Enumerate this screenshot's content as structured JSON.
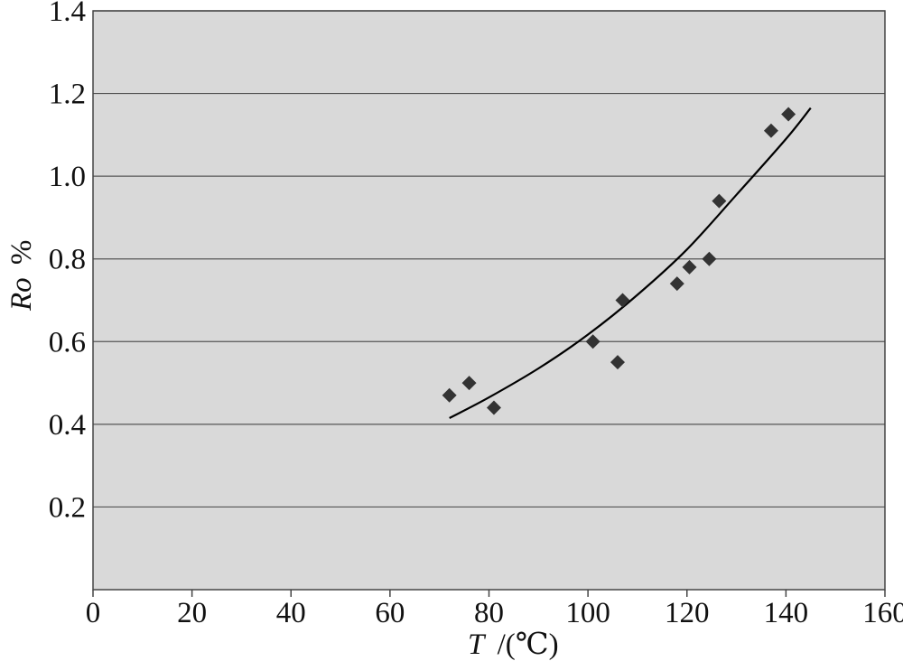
{
  "chart_data": {
    "type": "scatter",
    "x_ticks": [
      "0",
      "20",
      "40",
      "60",
      "80",
      "100",
      "120",
      "140",
      "160"
    ],
    "y_ticks": [
      "0.2",
      "0.4",
      "0.6",
      "0.8",
      "1.0",
      "1.2",
      "1.4"
    ],
    "xlabel_main": "T",
    "xlabel_unit": "/(℃)",
    "ylabel_main": "Ro",
    "ylabel_unit": "%",
    "xlim": [
      0,
      160
    ],
    "ylim": [
      0,
      1.4
    ],
    "grid": "horizontal",
    "background_color": "#d9d9d9",
    "marker": "diamond",
    "marker_color": "#333333",
    "points": [
      {
        "x": 72.0,
        "y": 0.47
      },
      {
        "x": 76.0,
        "y": 0.5
      },
      {
        "x": 81.0,
        "y": 0.44
      },
      {
        "x": 101.0,
        "y": 0.6
      },
      {
        "x": 106.0,
        "y": 0.55
      },
      {
        "x": 107.0,
        "y": 0.7
      },
      {
        "x": 118.0,
        "y": 0.74
      },
      {
        "x": 120.5,
        "y": 0.78
      },
      {
        "x": 124.5,
        "y": 0.8
      },
      {
        "x": 126.5,
        "y": 0.94
      },
      {
        "x": 137.0,
        "y": 1.11
      },
      {
        "x": 140.5,
        "y": 1.15
      }
    ],
    "trend_line": {
      "type": "exponential",
      "points": [
        {
          "x": 72,
          "y": 0.415
        },
        {
          "x": 80,
          "y": 0.465
        },
        {
          "x": 90,
          "y": 0.535
        },
        {
          "x": 100,
          "y": 0.617
        },
        {
          "x": 110,
          "y": 0.713
        },
        {
          "x": 120,
          "y": 0.823
        },
        {
          "x": 130,
          "y": 0.955
        },
        {
          "x": 140,
          "y": 1.09
        },
        {
          "x": 145,
          "y": 1.165
        }
      ]
    }
  }
}
